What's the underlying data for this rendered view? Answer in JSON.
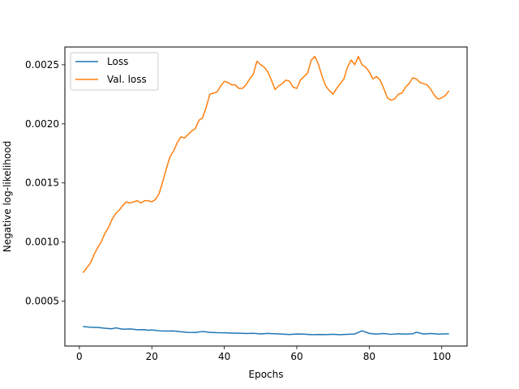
{
  "chart_data": {
    "type": "line",
    "title": "",
    "xlabel": "Epochs",
    "ylabel": "Negative log-likelihood",
    "xlim": [
      -4,
      107
    ],
    "ylim": [
      0.00012,
      0.00265
    ],
    "xticks": [
      0,
      20,
      40,
      60,
      80,
      100
    ],
    "yticks": [
      0.0005,
      0.001,
      0.0015,
      0.002,
      0.0025
    ],
    "ytick_labels": [
      "0.0005",
      "0.0010",
      "0.0015",
      "0.0020",
      "0.0025"
    ],
    "grid": false,
    "legend_position": "upper-left",
    "series": [
      {
        "name": "Loss",
        "color": "#1f77b4",
        "points": [
          [
            1,
            0.000285
          ],
          [
            3,
            0.000279
          ],
          [
            5,
            0.000278
          ],
          [
            7,
            0.000271
          ],
          [
            9,
            0.000266
          ],
          [
            10,
            0.000274
          ],
          [
            12,
            0.000262
          ],
          [
            14,
            0.000265
          ],
          [
            16,
            0.000258
          ],
          [
            18,
            0.000259
          ],
          [
            19,
            0.000254
          ],
          [
            20,
            0.000256
          ],
          [
            22,
            0.000249
          ],
          [
            24,
            0.000247
          ],
          [
            26,
            0.000248
          ],
          [
            28,
            0.000241
          ],
          [
            30,
            0.000236
          ],
          [
            32,
            0.000235
          ],
          [
            34,
            0.000243
          ],
          [
            36,
            0.000236
          ],
          [
            38,
            0.000233
          ],
          [
            40,
            0.000232
          ],
          [
            42,
            0.00023
          ],
          [
            44,
            0.000229
          ],
          [
            46,
            0.000226
          ],
          [
            48,
            0.000228
          ],
          [
            50,
            0.000223
          ],
          [
            52,
            0.000227
          ],
          [
            54,
            0.000224
          ],
          [
            56,
            0.000221
          ],
          [
            58,
            0.000218
          ],
          [
            60,
            0.000222
          ],
          [
            62,
            0.000221
          ],
          [
            64,
            0.000216
          ],
          [
            66,
            0.000218
          ],
          [
            68,
            0.000217
          ],
          [
            70,
            0.000219
          ],
          [
            72,
            0.000216
          ],
          [
            74,
            0.000219
          ],
          [
            76,
            0.000222
          ],
          [
            78,
            0.000249
          ],
          [
            80,
            0.000227
          ],
          [
            82,
            0.000221
          ],
          [
            84,
            0.000226
          ],
          [
            86,
            0.000219
          ],
          [
            88,
            0.000224
          ],
          [
            90,
            0.000221
          ],
          [
            92,
            0.000224
          ],
          [
            93,
            0.000237
          ],
          [
            95,
            0.000222
          ],
          [
            97,
            0.000226
          ],
          [
            99,
            0.000221
          ],
          [
            102,
            0.000224
          ]
        ]
      },
      {
        "name": "Val. loss",
        "color": "#ff7f0e",
        "points": [
          [
            1,
            0.00074
          ],
          [
            2,
            0.00078
          ],
          [
            3,
            0.00082
          ],
          [
            4,
            0.00089
          ],
          [
            5,
            0.00095
          ],
          [
            6,
            0.001
          ],
          [
            7,
            0.00107
          ],
          [
            8,
            0.00112
          ],
          [
            9,
            0.00119
          ],
          [
            10,
            0.00124
          ],
          [
            11,
            0.00127
          ],
          [
            12,
            0.00131
          ],
          [
            13,
            0.00134
          ],
          [
            14,
            0.00133
          ],
          [
            15,
            0.00134
          ],
          [
            16,
            0.00135
          ],
          [
            17,
            0.00133
          ],
          [
            18,
            0.00135
          ],
          [
            19,
            0.00135
          ],
          [
            20,
            0.00134
          ],
          [
            21,
            0.00136
          ],
          [
            22,
            0.00141
          ],
          [
            23,
            0.00151
          ],
          [
            24,
            0.00162
          ],
          [
            25,
            0.00172
          ],
          [
            26,
            0.00177
          ],
          [
            27,
            0.00184
          ],
          [
            28,
            0.00189
          ],
          [
            29,
            0.00188
          ],
          [
            30,
            0.00191
          ],
          [
            31,
            0.00194
          ],
          [
            32,
            0.00196
          ],
          [
            33,
            0.00203
          ],
          [
            34,
            0.00205
          ],
          [
            35,
            0.00214
          ],
          [
            36,
            0.00225
          ],
          [
            37,
            0.00226
          ],
          [
            38,
            0.00227
          ],
          [
            39,
            0.00232
          ],
          [
            40,
            0.00236
          ],
          [
            41,
            0.00235
          ],
          [
            42,
            0.00233
          ],
          [
            43,
            0.00233
          ],
          [
            44,
            0.0023
          ],
          [
            45,
            0.0023
          ],
          [
            46,
            0.00233
          ],
          [
            47,
            0.00238
          ],
          [
            48,
            0.00242
          ],
          [
            49,
            0.00253
          ],
          [
            50,
            0.0025
          ],
          [
            51,
            0.00248
          ],
          [
            52,
            0.00244
          ],
          [
            53,
            0.00237
          ],
          [
            54,
            0.00229
          ],
          [
            55,
            0.00232
          ],
          [
            56,
            0.00234
          ],
          [
            57,
            0.00237
          ],
          [
            58,
            0.00236
          ],
          [
            59,
            0.00231
          ],
          [
            60,
            0.0023
          ],
          [
            61,
            0.00237
          ],
          [
            62,
            0.0024
          ],
          [
            63,
            0.00243
          ],
          [
            64,
            0.00254
          ],
          [
            65,
            0.00257
          ],
          [
            66,
            0.0025
          ],
          [
            67,
            0.0024
          ],
          [
            68,
            0.00232
          ],
          [
            69,
            0.00228
          ],
          [
            70,
            0.00225
          ],
          [
            71,
            0.0023
          ],
          [
            72,
            0.00234
          ],
          [
            73,
            0.00238
          ],
          [
            74,
            0.00248
          ],
          [
            75,
            0.00254
          ],
          [
            76,
            0.0025
          ],
          [
            77,
            0.00257
          ],
          [
            78,
            0.0025
          ],
          [
            79,
            0.00248
          ],
          [
            80,
            0.00244
          ],
          [
            81,
            0.00238
          ],
          [
            82,
            0.0024
          ],
          [
            83,
            0.00237
          ],
          [
            84,
            0.0023
          ],
          [
            85,
            0.00222
          ],
          [
            86,
            0.0022
          ],
          [
            87,
            0.00221
          ],
          [
            88,
            0.00225
          ],
          [
            89,
            0.00226
          ],
          [
            90,
            0.00231
          ],
          [
            91,
            0.00234
          ],
          [
            92,
            0.00239
          ],
          [
            93,
            0.00238
          ],
          [
            94,
            0.00235
          ],
          [
            95,
            0.00234
          ],
          [
            96,
            0.00233
          ],
          [
            97,
            0.00229
          ],
          [
            98,
            0.00224
          ],
          [
            99,
            0.00221
          ],
          [
            100,
            0.00222
          ],
          [
            101,
            0.00224
          ],
          [
            102,
            0.00228
          ]
        ]
      }
    ]
  }
}
